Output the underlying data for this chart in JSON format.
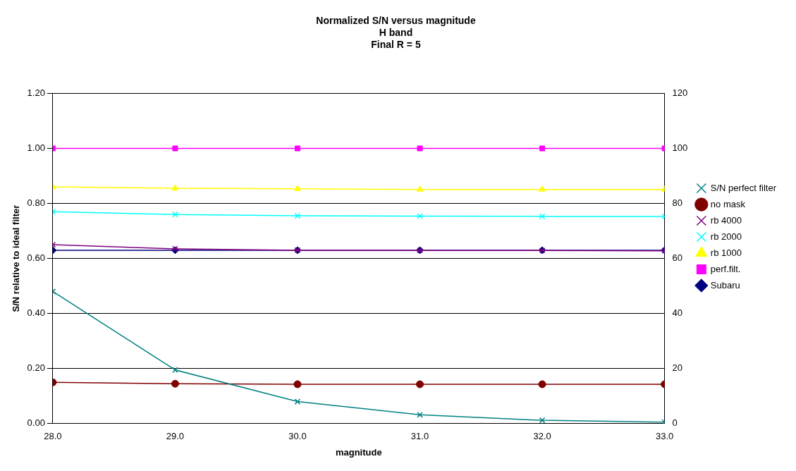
{
  "chart_data": {
    "type": "line",
    "title": "Normalized S/N versus magnitude",
    "subtitle": "H band\nFinal R = 5",
    "xlabel": "magnitude",
    "ylabel": "S/N relative to ideal filter",
    "x": [
      28,
      29,
      30,
      31,
      32,
      33
    ],
    "xlim": [
      28,
      33
    ],
    "xticks": [
      {
        "value": 28,
        "label": "28.0"
      },
      {
        "value": 29,
        "label": "29.0"
      },
      {
        "value": 30,
        "label": "30.0"
      },
      {
        "value": 31,
        "label": "31.0"
      },
      {
        "value": 32,
        "label": "32.0"
      },
      {
        "value": 33,
        "label": "33.0"
      }
    ],
    "ylim": [
      0,
      1.2
    ],
    "yticks": [
      {
        "value": 0,
        "label": "0.00"
      },
      {
        "value": 0.2,
        "label": "0.20"
      },
      {
        "value": 0.4,
        "label": "0.40"
      },
      {
        "value": 0.6,
        "label": "0.60"
      },
      {
        "value": 0.8,
        "label": "0.80"
      },
      {
        "value": 1,
        "label": "1.00"
      },
      {
        "value": 1.2,
        "label": "1.20"
      }
    ],
    "y2lim": [
      0,
      120
    ],
    "y2ticks": [
      0,
      20,
      40,
      60,
      80,
      100,
      120
    ],
    "grid": "y",
    "legend": "right",
    "series": [
      {
        "name": "Subaru",
        "color": "#000080",
        "marker": "diamond",
        "values": [
          0.63,
          0.63,
          0.63,
          0.63,
          0.63,
          0.63
        ]
      },
      {
        "name": "perf.filt.",
        "color": "#ff00ff",
        "marker": "square",
        "values": [
          1,
          1,
          1,
          1,
          1,
          1
        ]
      },
      {
        "name": "rb 1000",
        "color": "#ffff00",
        "marker": "triangle",
        "values": [
          0.86,
          0.855,
          0.853,
          0.851,
          0.851,
          0.851
        ]
      },
      {
        "name": "rb 2000",
        "color": "#00ffff",
        "marker": "cross",
        "values": [
          0.77,
          0.76,
          0.755,
          0.754,
          0.753,
          0.753
        ]
      },
      {
        "name": "rb 4000",
        "color": "#800080",
        "marker": "cross",
        "values": [
          0.65,
          0.635,
          0.63,
          0.629,
          0.629,
          0.628
        ]
      },
      {
        "name": "no mask",
        "color": "#800000",
        "marker": "circle",
        "values": [
          0.15,
          0.145,
          0.143,
          0.143,
          0.143,
          0.143
        ]
      },
      {
        "name": "S/N perfect filter",
        "color": "#008080",
        "marker": "cross",
        "axis": "y2",
        "values": [
          48,
          19.5,
          8,
          3.2,
          1.2,
          0.5
        ]
      }
    ]
  }
}
